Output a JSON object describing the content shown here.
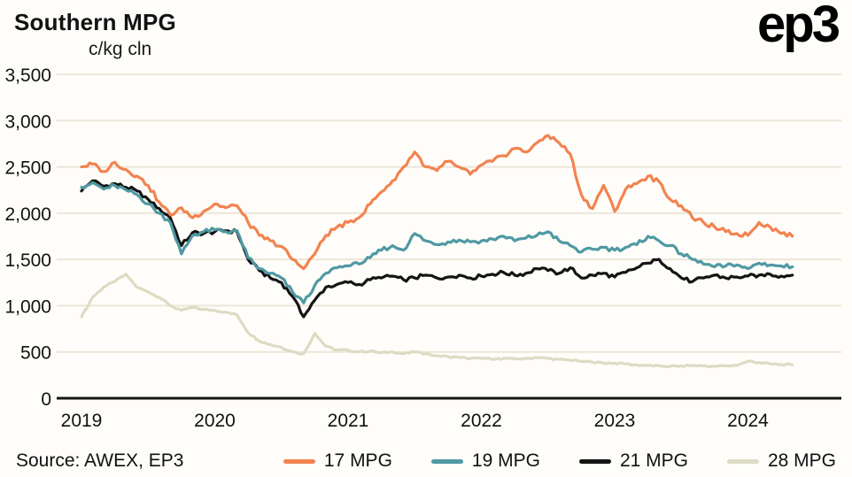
{
  "brand": {
    "logo_text": "ep3"
  },
  "chart_data": {
    "type": "line",
    "title": "Southern MPG",
    "unit_label": "c/kg cln",
    "source": "Source: AWEX, EP3",
    "x_start": 2019.0,
    "points_per_year": 12,
    "xlim": [
      2018.95,
      2024.6
    ],
    "ylim": [
      0,
      3500
    ],
    "ytick_values": [
      0,
      500,
      1000,
      1500,
      2000,
      2500,
      3000,
      3500
    ],
    "ytick_labels": [
      "0",
      "500",
      "1,000",
      "1,500",
      "2,000",
      "2,500",
      "3,000",
      "3,500"
    ],
    "xtick_values": [
      2019,
      2020,
      2021,
      2022,
      2023,
      2024
    ],
    "xtick_labels": [
      "2019",
      "2020",
      "2021",
      "2022",
      "2023",
      "2024"
    ],
    "grid": true,
    "legend_position": "bottom",
    "series": [
      {
        "name": "17 MPG",
        "color": "#f28350",
        "values": [
          2500,
          2530,
          2450,
          2550,
          2470,
          2400,
          2300,
          2120,
          1980,
          2060,
          1950,
          2020,
          2100,
          2060,
          2080,
          1900,
          1760,
          1700,
          1640,
          1500,
          1400,
          1560,
          1760,
          1850,
          1900,
          1950,
          2100,
          2230,
          2350,
          2500,
          2660,
          2500,
          2460,
          2560,
          2500,
          2420,
          2520,
          2560,
          2620,
          2700,
          2660,
          2760,
          2840,
          2760,
          2640,
          2200,
          2050,
          2300,
          2020,
          2260,
          2320,
          2400,
          2340,
          2150,
          2080,
          1950,
          1900,
          1850,
          1800,
          1780,
          1760,
          1900,
          1850,
          1780,
          1750
        ]
      },
      {
        "name": "19 MPG",
        "color": "#4f99a3",
        "values": [
          2280,
          2330,
          2260,
          2300,
          2250,
          2200,
          2100,
          2000,
          1900,
          1560,
          1760,
          1800,
          1820,
          1800,
          1810,
          1520,
          1400,
          1350,
          1300,
          1150,
          1030,
          1220,
          1350,
          1410,
          1430,
          1450,
          1520,
          1600,
          1650,
          1600,
          1780,
          1700,
          1660,
          1690,
          1710,
          1690,
          1700,
          1720,
          1750,
          1700,
          1730,
          1760,
          1800,
          1700,
          1650,
          1580,
          1610,
          1630,
          1600,
          1630,
          1660,
          1750,
          1700,
          1650,
          1560,
          1500,
          1450,
          1420,
          1430,
          1440,
          1400,
          1460,
          1440,
          1430,
          1420
        ]
      },
      {
        "name": "21 MPG",
        "color": "#141414",
        "values": [
          2240,
          2350,
          2290,
          2320,
          2280,
          2240,
          2150,
          2050,
          1950,
          1650,
          1790,
          1780,
          1800,
          1810,
          1800,
          1500,
          1380,
          1300,
          1250,
          1100,
          880,
          1060,
          1200,
          1230,
          1250,
          1230,
          1280,
          1300,
          1320,
          1280,
          1300,
          1330,
          1300,
          1310,
          1330,
          1300,
          1320,
          1340,
          1360,
          1330,
          1350,
          1400,
          1380,
          1350,
          1410,
          1300,
          1330,
          1350,
          1310,
          1360,
          1410,
          1460,
          1500,
          1400,
          1300,
          1260,
          1300,
          1330,
          1300,
          1310,
          1320,
          1330,
          1340,
          1320,
          1330
        ]
      },
      {
        "name": "28 MPG",
        "color": "#dcdbc4",
        "values": [
          880,
          1090,
          1200,
          1260,
          1340,
          1200,
          1150,
          1090,
          1000,
          950,
          980,
          960,
          950,
          930,
          900,
          710,
          620,
          580,
          550,
          500,
          480,
          700,
          560,
          520,
          520,
          500,
          510,
          490,
          500,
          480,
          500,
          480,
          460,
          450,
          440,
          430,
          430,
          420,
          430,
          425,
          430,
          440,
          430,
          420,
          410,
          400,
          390,
          380,
          380,
          370,
          360,
          355,
          350,
          345,
          350,
          355,
          350,
          345,
          350,
          355,
          400,
          385,
          370,
          365,
          360
        ]
      }
    ]
  }
}
